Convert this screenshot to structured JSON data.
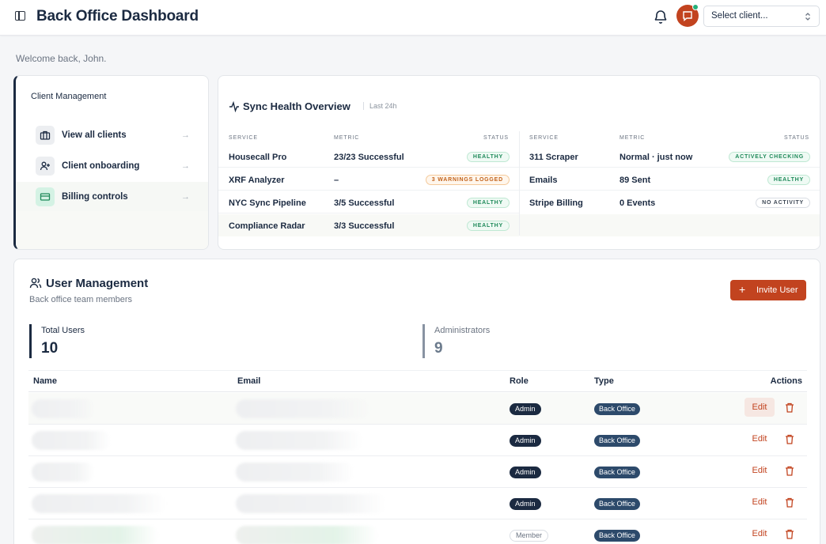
{
  "header": {
    "title": "Back Office Dashboard",
    "client_select_placeholder": "Select client...",
    "notification_icon": "bell-icon",
    "messages_icon": "chat-icon",
    "accent": "#c2431f"
  },
  "welcome": "Welcome back, John.",
  "client_management": {
    "title": "Client Management",
    "items": [
      {
        "label": "View all clients",
        "icon": "briefcase-icon"
      },
      {
        "label": "Client onboarding",
        "icon": "user-plus-icon"
      },
      {
        "label": "Billing controls",
        "icon": "credit-card-icon"
      }
    ],
    "arrow": "→"
  },
  "sync": {
    "title": "Sync Health Overview",
    "range": "Last 24h",
    "headers": {
      "service": "SERVICE",
      "metric": "METRIC",
      "status": "STATUS"
    },
    "left": [
      {
        "service": "Housecall Pro",
        "metric": "23/23 Successful",
        "status": "HEALTHY"
      },
      {
        "service": "XRF Analyzer",
        "metric": "–",
        "status": "3 WARNINGS LOGGED"
      },
      {
        "service": "NYC Sync Pipeline",
        "metric": "3/5 Successful",
        "status": "HEALTHY"
      },
      {
        "service": "Compliance Radar",
        "metric": "3/3 Successful",
        "status": "HEALTHY"
      }
    ],
    "right": [
      {
        "service": "311 Scraper",
        "metric": "Normal · just now",
        "status": "ACTIVELY CHECKING"
      },
      {
        "service": "Emails",
        "metric": "89 Sent",
        "status": "HEALTHY"
      },
      {
        "service": "Stripe Billing",
        "metric": "0 Events",
        "status": "NO ACTIVITY"
      }
    ]
  },
  "users": {
    "title": "User Management",
    "subtitle": "Back office team members",
    "invite_label": "Invite User",
    "stats": [
      {
        "label": "Total Users",
        "value": "10"
      },
      {
        "label": "Administrators",
        "value": "9"
      }
    ],
    "columns": {
      "name": "Name",
      "email": "Email",
      "role": "Role",
      "type": "Type",
      "actions": "Actions"
    },
    "rows": [
      {
        "role": "Admin",
        "type": "Back Office",
        "edit": "Edit"
      },
      {
        "role": "Admin",
        "type": "Back Office",
        "edit": "Edit"
      },
      {
        "role": "Admin",
        "type": "Back Office",
        "edit": "Edit"
      },
      {
        "role": "Admin",
        "type": "Back Office",
        "edit": "Edit"
      },
      {
        "role": "Member",
        "type": "Back Office",
        "edit": "Edit"
      }
    ]
  }
}
